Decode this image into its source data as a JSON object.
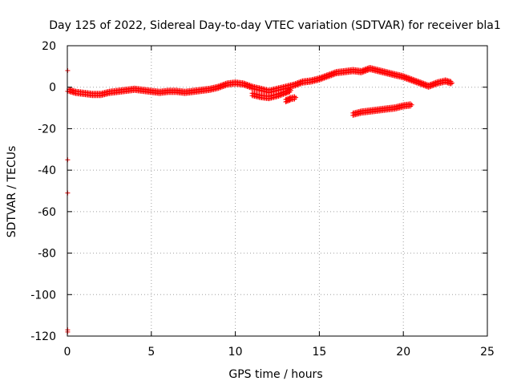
{
  "chart_data": {
    "type": "scatter",
    "title": "Day 125 of 2022, Sidereal Day-to-day VTEC variation (SDTVAR) for receiver bla1",
    "xlabel": "GPS time / hours",
    "ylabel": "SDTVAR / TECUs",
    "xlim": [
      0,
      25
    ],
    "ylim": [
      -120,
      20
    ],
    "xticks": [
      0,
      5,
      10,
      15,
      20,
      25
    ],
    "yticks": [
      20,
      0,
      -20,
      -40,
      -60,
      -80,
      -100,
      -120
    ],
    "grid": true,
    "marker": "plus",
    "series_color": "#ff0000",
    "series": [
      {
        "name": "main",
        "x": [
          0.1,
          0.5,
          1.0,
          1.5,
          2.0,
          2.5,
          3.0,
          3.5,
          4.0,
          4.5,
          5.0,
          5.5,
          6.0,
          6.5,
          7.0,
          7.5,
          8.0,
          8.5,
          9.0,
          9.5,
          10.0,
          10.5,
          11.0,
          11.5,
          12.0,
          12.5,
          13.0,
          13.5,
          14.0,
          14.5,
          15.0,
          15.5,
          16.0,
          16.5,
          17.0,
          17.5,
          18.0,
          18.5,
          19.0,
          19.5,
          20.0,
          20.5,
          21.0,
          21.5,
          22.0,
          22.5,
          22.9
        ],
        "y": [
          -1.5,
          -2.5,
          -3,
          -3.5,
          -3.5,
          -2.5,
          -2,
          -1.5,
          -1,
          -1.5,
          -2,
          -2.5,
          -2,
          -2,
          -2.5,
          -2,
          -1.5,
          -1,
          0,
          1.5,
          2,
          1.5,
          0,
          -1,
          -2,
          -1,
          0,
          1,
          2.5,
          3,
          4,
          5.5,
          7,
          7.5,
          8,
          7.5,
          9,
          8,
          7,
          6,
          5,
          3.5,
          2,
          0.5,
          2,
          3,
          2
        ]
      },
      {
        "name": "dip",
        "x": [
          11.0,
          11.5,
          12.0,
          12.5,
          13.0,
          13.3
        ],
        "y": [
          -3.5,
          -4.5,
          -5,
          -4,
          -2.5,
          -1.5
        ]
      },
      {
        "name": "short",
        "x": [
          13.0,
          13.3,
          13.6
        ],
        "y": [
          -6.5,
          -5.5,
          -5
        ]
      },
      {
        "name": "lower",
        "x": [
          17.0,
          17.5,
          18.0,
          18.5,
          19.0,
          19.5,
          20.0,
          20.5
        ],
        "y": [
          -13,
          -12,
          -11.5,
          -11,
          -10.5,
          -10,
          -9,
          -8.5
        ]
      },
      {
        "name": "outliers",
        "x": [
          0.02,
          0.02,
          0.02,
          0.02,
          0.02,
          0.02
        ],
        "y": [
          8,
          -2,
          -35,
          -51,
          -117,
          -118
        ]
      }
    ]
  }
}
